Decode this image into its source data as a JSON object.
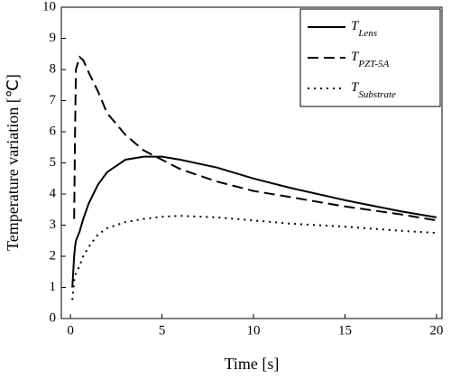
{
  "chart_data": {
    "type": "line",
    "x_label": "Time [s]",
    "y_label": "Temperature variation [℃]",
    "x": [
      0.1,
      0.2,
      0.25,
      0.3,
      0.5,
      0.7,
      1,
      1.5,
      2,
      3,
      4,
      5,
      6,
      8,
      10,
      12,
      15,
      18,
      20
    ],
    "series": [
      {
        "name": "T",
        "subscript": "Lens",
        "color": "#000000",
        "dash": "solid",
        "values": [
          1.0,
          2.0,
          2.3,
          2.5,
          2.8,
          3.2,
          3.7,
          4.3,
          4.7,
          5.1,
          5.2,
          5.2,
          5.1,
          4.85,
          4.5,
          4.2,
          3.8,
          3.45,
          3.25
        ]
      },
      {
        "name": "T",
        "subscript": "PZT-5A",
        "color": "#000000",
        "dash": "dashed",
        "values": [
          null,
          3.2,
          6.0,
          8.0,
          8.4,
          8.3,
          7.9,
          7.3,
          6.6,
          5.9,
          5.4,
          5.1,
          4.8,
          4.4,
          4.1,
          3.9,
          3.6,
          3.35,
          3.15
        ]
      },
      {
        "name": "T",
        "subscript": "Substrate",
        "color": "#000000",
        "dash": "dotted",
        "values": [
          0.6,
          1.2,
          1.35,
          1.45,
          1.7,
          2.0,
          2.3,
          2.7,
          2.9,
          3.1,
          3.2,
          3.27,
          3.3,
          3.25,
          3.15,
          3.05,
          2.95,
          2.82,
          2.75
        ]
      }
    ],
    "xlim": [
      -0.5,
      20.3
    ],
    "ylim": [
      0,
      10
    ],
    "xticks": [
      0,
      5,
      10,
      15,
      20
    ],
    "yticks": [
      0,
      1,
      2,
      3,
      4,
      5,
      6,
      7,
      8,
      9,
      10
    ],
    "legend": "upper-right"
  }
}
